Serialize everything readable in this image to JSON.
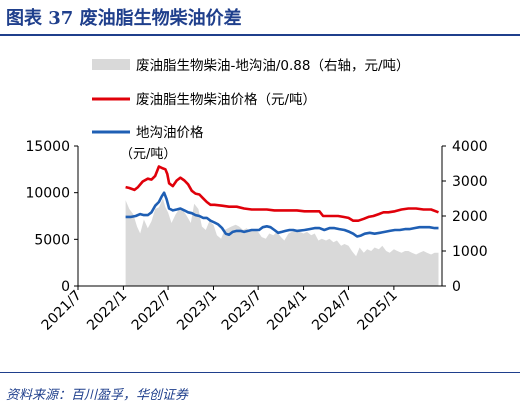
{
  "header": {
    "title": "图表 37   废油脂生物柴油价差"
  },
  "source": {
    "text": "资料来源：百川盈孚，华创证券"
  },
  "chart_data": {
    "type": "line",
    "x_tick_labels": [
      "2021/7",
      "2022/1",
      "2022/7",
      "2023/1",
      "2023/7",
      "2024/1",
      "2024/7",
      "2025/1"
    ],
    "x_tick_dates": [
      "2021-07-01",
      "2022-01-01",
      "2022-07-01",
      "2023-01-01",
      "2023-07-01",
      "2024-01-01",
      "2024-07-01",
      "2025-01-01"
    ],
    "xlim": [
      "2021-07-01",
      "2025-07-15"
    ],
    "ylim_left": [
      0,
      15000
    ],
    "yticks_left": [
      0,
      5000,
      10000,
      15000
    ],
    "ytick_labels_left": [
      "0",
      "5000",
      "10000",
      "15000"
    ],
    "ylim_right": [
      0,
      4000
    ],
    "yticks_right": [
      0,
      1000,
      2000,
      3000,
      4000
    ],
    "ytick_labels_right": [
      "0",
      "1000",
      "2000",
      "3000",
      "4000"
    ],
    "legend_position": "top",
    "annotation": "（元/吨）",
    "colors": {
      "spread": "#d9d9d9",
      "price": "#e0000a",
      "uco": "#1f5fb4",
      "axis": "#000000"
    },
    "series": [
      {
        "name": "废油脂生物柴油-地沟油/0.88（右轴，元/吨）",
        "kind": "area",
        "axis": "right",
        "points": [
          [
            "2022-01-10",
            2450
          ],
          [
            "2022-01-25",
            2200
          ],
          [
            "2022-02-10",
            2050
          ],
          [
            "2022-02-25",
            1700
          ],
          [
            "2022-03-10",
            1500
          ],
          [
            "2022-03-25",
            1900
          ],
          [
            "2022-04-10",
            1650
          ],
          [
            "2022-04-25",
            1850
          ],
          [
            "2022-05-10",
            2200
          ],
          [
            "2022-05-25",
            2250
          ],
          [
            "2022-06-10",
            2500
          ],
          [
            "2022-06-20",
            2250
          ],
          [
            "2022-07-01",
            2100
          ],
          [
            "2022-07-15",
            1800
          ],
          [
            "2022-08-01",
            2050
          ],
          [
            "2022-08-15",
            2200
          ],
          [
            "2022-09-01",
            2150
          ],
          [
            "2022-09-15",
            2000
          ],
          [
            "2022-10-01",
            1800
          ],
          [
            "2022-10-15",
            2350
          ],
          [
            "2022-11-01",
            2200
          ],
          [
            "2022-11-15",
            1700
          ],
          [
            "2022-12-01",
            1600
          ],
          [
            "2022-12-15",
            1850
          ],
          [
            "2023-01-01",
            1750
          ],
          [
            "2023-01-15",
            1450
          ],
          [
            "2023-02-01",
            1350
          ],
          [
            "2023-02-15",
            1600
          ],
          [
            "2023-03-01",
            1650
          ],
          [
            "2023-03-15",
            1700
          ],
          [
            "2023-04-01",
            1750
          ],
          [
            "2023-04-15",
            1700
          ],
          [
            "2023-05-01",
            1600
          ],
          [
            "2023-05-15",
            1650
          ],
          [
            "2023-06-01",
            1550
          ],
          [
            "2023-06-15",
            1600
          ],
          [
            "2023-07-01",
            1550
          ],
          [
            "2023-07-15",
            1400
          ],
          [
            "2023-08-01",
            1350
          ],
          [
            "2023-08-15",
            1500
          ],
          [
            "2023-09-01",
            1450
          ],
          [
            "2023-09-15",
            1550
          ],
          [
            "2023-10-01",
            1400
          ],
          [
            "2023-10-15",
            1300
          ],
          [
            "2023-11-01",
            1500
          ],
          [
            "2023-11-15",
            1550
          ],
          [
            "2023-12-01",
            1600
          ],
          [
            "2023-12-15",
            1550
          ],
          [
            "2024-01-01",
            1500
          ],
          [
            "2024-01-15",
            1550
          ],
          [
            "2024-02-01",
            1450
          ],
          [
            "2024-02-15",
            1500
          ],
          [
            "2024-03-01",
            1300
          ],
          [
            "2024-03-15",
            1350
          ],
          [
            "2024-04-01",
            1300
          ],
          [
            "2024-04-15",
            1350
          ],
          [
            "2024-05-01",
            1250
          ],
          [
            "2024-05-15",
            1300
          ],
          [
            "2024-06-01",
            1150
          ],
          [
            "2024-06-15",
            1200
          ],
          [
            "2024-07-01",
            1150
          ],
          [
            "2024-07-15",
            1000
          ],
          [
            "2024-08-01",
            850
          ],
          [
            "2024-08-15",
            1100
          ],
          [
            "2024-09-01",
            950
          ],
          [
            "2024-09-15",
            1050
          ],
          [
            "2024-10-01",
            1000
          ],
          [
            "2024-10-15",
            1100
          ],
          [
            "2024-11-01",
            1050
          ],
          [
            "2024-11-15",
            1150
          ],
          [
            "2024-12-01",
            1000
          ],
          [
            "2024-12-15",
            950
          ],
          [
            "2025-01-01",
            1050
          ],
          [
            "2025-01-15",
            1000
          ],
          [
            "2025-02-01",
            950
          ],
          [
            "2025-02-15",
            1000
          ],
          [
            "2025-03-01",
            1000
          ],
          [
            "2025-03-15",
            950
          ],
          [
            "2025-04-01",
            900
          ],
          [
            "2025-04-15",
            950
          ],
          [
            "2025-05-01",
            1000
          ],
          [
            "2025-05-15",
            950
          ],
          [
            "2025-06-01",
            900
          ],
          [
            "2025-06-15",
            950
          ],
          [
            "2025-07-01",
            950
          ]
        ]
      },
      {
        "name": "废油脂生物柴油价格（元/吨）",
        "kind": "line",
        "axis": "left",
        "points": [
          [
            "2022-01-10",
            10600
          ],
          [
            "2022-01-25",
            10500
          ],
          [
            "2022-02-15",
            10300
          ],
          [
            "2022-03-01",
            10600
          ],
          [
            "2022-03-20",
            11200
          ],
          [
            "2022-04-10",
            11500
          ],
          [
            "2022-04-25",
            11400
          ],
          [
            "2022-05-10",
            11800
          ],
          [
            "2022-05-25",
            12800
          ],
          [
            "2022-06-10",
            12600
          ],
          [
            "2022-06-20",
            12500
          ],
          [
            "2022-06-28",
            12000
          ],
          [
            "2022-07-05",
            11000
          ],
          [
            "2022-07-20",
            10700
          ],
          [
            "2022-08-05",
            11300
          ],
          [
            "2022-08-20",
            11600
          ],
          [
            "2022-09-05",
            11300
          ],
          [
            "2022-09-20",
            10900
          ],
          [
            "2022-10-05",
            10200
          ],
          [
            "2022-10-20",
            9900
          ],
          [
            "2022-11-05",
            9800
          ],
          [
            "2022-11-20",
            9400
          ],
          [
            "2022-12-05",
            9000
          ],
          [
            "2022-12-20",
            8700
          ],
          [
            "2023-01-05",
            8700
          ],
          [
            "2023-02-05",
            8600
          ],
          [
            "2023-03-05",
            8500
          ],
          [
            "2023-04-05",
            8500
          ],
          [
            "2023-05-05",
            8300
          ],
          [
            "2023-06-05",
            8200
          ],
          [
            "2023-07-05",
            8200
          ],
          [
            "2023-08-05",
            8200
          ],
          [
            "2023-09-05",
            8100
          ],
          [
            "2023-10-05",
            8100
          ],
          [
            "2023-11-05",
            8100
          ],
          [
            "2023-12-05",
            8100
          ],
          [
            "2024-01-05",
            8000
          ],
          [
            "2024-02-05",
            8000
          ],
          [
            "2024-03-05",
            8000
          ],
          [
            "2024-03-20",
            7500
          ],
          [
            "2024-04-20",
            7500
          ],
          [
            "2024-05-20",
            7500
          ],
          [
            "2024-06-10",
            7400
          ],
          [
            "2024-07-01",
            7300
          ],
          [
            "2024-07-20",
            7000
          ],
          [
            "2024-08-10",
            7000
          ],
          [
            "2024-09-01",
            7200
          ],
          [
            "2024-09-20",
            7400
          ],
          [
            "2024-10-10",
            7500
          ],
          [
            "2024-11-01",
            7700
          ],
          [
            "2024-11-20",
            7900
          ],
          [
            "2024-12-10",
            7900
          ],
          [
            "2025-01-05",
            8000
          ],
          [
            "2025-02-01",
            8200
          ],
          [
            "2025-03-01",
            8300
          ],
          [
            "2025-04-01",
            8300
          ],
          [
            "2025-05-01",
            8200
          ],
          [
            "2025-06-01",
            8200
          ],
          [
            "2025-07-01",
            7900
          ]
        ]
      },
      {
        "name": "地沟油价格（元/吨）",
        "kind": "line",
        "axis": "left",
        "points": [
          [
            "2022-01-10",
            7400
          ],
          [
            "2022-02-01",
            7400
          ],
          [
            "2022-02-20",
            7500
          ],
          [
            "2022-03-10",
            7700
          ],
          [
            "2022-03-25",
            7600
          ],
          [
            "2022-04-10",
            7600
          ],
          [
            "2022-04-25",
            7900
          ],
          [
            "2022-05-10",
            8600
          ],
          [
            "2022-05-25",
            9000
          ],
          [
            "2022-06-05",
            9600
          ],
          [
            "2022-06-15",
            10000
          ],
          [
            "2022-06-25",
            9300
          ],
          [
            "2022-07-05",
            8300
          ],
          [
            "2022-07-20",
            8100
          ],
          [
            "2022-08-05",
            8200
          ],
          [
            "2022-08-20",
            8300
          ],
          [
            "2022-09-05",
            8100
          ],
          [
            "2022-09-20",
            7900
          ],
          [
            "2022-10-05",
            7800
          ],
          [
            "2022-10-20",
            7600
          ],
          [
            "2022-11-05",
            7500
          ],
          [
            "2022-11-20",
            7300
          ],
          [
            "2022-12-05",
            7300
          ],
          [
            "2022-12-20",
            7000
          ],
          [
            "2023-01-05",
            6800
          ],
          [
            "2023-01-20",
            6600
          ],
          [
            "2023-02-05",
            6200
          ],
          [
            "2023-02-20",
            5600
          ],
          [
            "2023-03-05",
            5500
          ],
          [
            "2023-03-20",
            5800
          ],
          [
            "2023-04-05",
            5900
          ],
          [
            "2023-04-20",
            5900
          ],
          [
            "2023-05-05",
            5800
          ],
          [
            "2023-06-05",
            6000
          ],
          [
            "2023-07-05",
            6000
          ],
          [
            "2023-07-20",
            6300
          ],
          [
            "2023-08-05",
            6400
          ],
          [
            "2023-08-20",
            6300
          ],
          [
            "2023-09-05",
            6000
          ],
          [
            "2023-09-20",
            5700
          ],
          [
            "2023-10-05",
            5800
          ],
          [
            "2023-10-20",
            5900
          ],
          [
            "2023-11-05",
            6000
          ],
          [
            "2023-11-20",
            6000
          ],
          [
            "2023-12-05",
            5900
          ],
          [
            "2024-01-05",
            6000
          ],
          [
            "2024-01-25",
            6100
          ],
          [
            "2024-02-15",
            6200
          ],
          [
            "2024-03-05",
            6200
          ],
          [
            "2024-03-25",
            6000
          ],
          [
            "2024-04-15",
            6200
          ],
          [
            "2024-05-05",
            6200
          ],
          [
            "2024-05-25",
            6100
          ],
          [
            "2024-06-15",
            6000
          ],
          [
            "2024-07-05",
            5800
          ],
          [
            "2024-07-20",
            5600
          ],
          [
            "2024-08-05",
            5300
          ],
          [
            "2024-08-20",
            5400
          ],
          [
            "2024-09-05",
            5600
          ],
          [
            "2024-09-25",
            5700
          ],
          [
            "2024-10-15",
            5600
          ],
          [
            "2024-11-05",
            5700
          ],
          [
            "2024-11-25",
            5800
          ],
          [
            "2024-12-15",
            5900
          ],
          [
            "2025-01-05",
            6000
          ],
          [
            "2025-01-25",
            6000
          ],
          [
            "2025-02-15",
            6100
          ],
          [
            "2025-03-05",
            6100
          ],
          [
            "2025-03-25",
            6200
          ],
          [
            "2025-04-15",
            6300
          ],
          [
            "2025-05-05",
            6300
          ],
          [
            "2025-05-25",
            6300
          ],
          [
            "2025-06-15",
            6200
          ],
          [
            "2025-07-01",
            6200
          ]
        ]
      }
    ]
  }
}
